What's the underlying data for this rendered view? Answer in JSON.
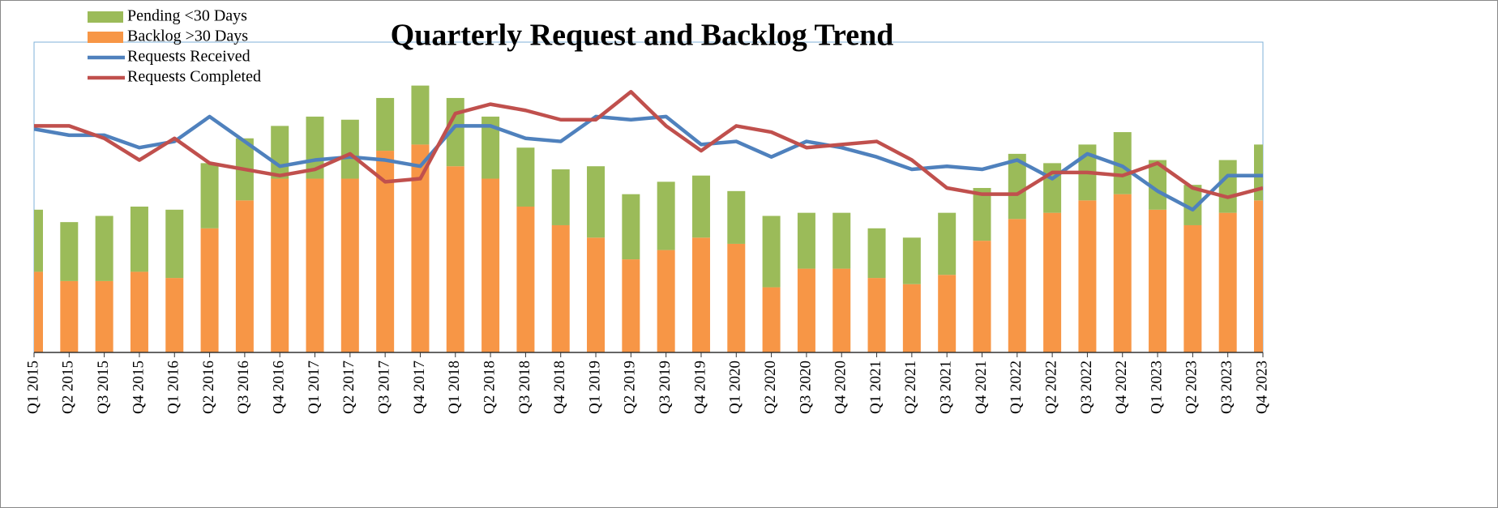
{
  "chart_data": {
    "type": "bar",
    "stacked": true,
    "title": "Quarterly Request and Backlog Trend",
    "legend": "upper left",
    "categories": [
      "Q1 2015",
      "Q2 2015",
      "Q3 2015",
      "Q4 2015",
      "Q1 2016",
      "Q2 2016",
      "Q3 2016",
      "Q4 2016",
      "Q1 2017",
      "Q2 2017",
      "Q3 2017",
      "Q4 2017",
      "Q1 2018",
      "Q2 2018",
      "Q3 2018",
      "Q4 2018",
      "Q1 2019",
      "Q2 2019",
      "Q3 2019",
      "Q4 2019",
      "Q1 2020",
      "Q2 2020",
      "Q3 2020",
      "Q4 2020",
      "Q1 2021",
      "Q2 2021",
      "Q3 2021",
      "Q4 2021",
      "Q1 2022",
      "Q2 2022",
      "Q3 2022",
      "Q4 2022",
      "Q1 2023",
      "Q2 2023",
      "Q3 2023",
      "Q4 2023"
    ],
    "ylim": [
      0,
      100
    ],
    "series": [
      {
        "name": "Pending <30 Days",
        "type": "bar",
        "color": "#9bbb59",
        "values": [
          20,
          19,
          21,
          21,
          22,
          21,
          20,
          17,
          20,
          19,
          17,
          19,
          22,
          20,
          19,
          18,
          23,
          21,
          22,
          20,
          17,
          23,
          18,
          18,
          16,
          15,
          20,
          17,
          21,
          16,
          18,
          20,
          16,
          13,
          17,
          18
        ]
      },
      {
        "name": "Backlog >30 Days",
        "type": "bar",
        "color": "#f79646",
        "values": [
          26,
          23,
          23,
          26,
          24,
          40,
          49,
          56,
          56,
          56,
          65,
          67,
          60,
          56,
          47,
          41,
          37,
          30,
          33,
          37,
          35,
          21,
          27,
          27,
          24,
          22,
          25,
          36,
          43,
          45,
          49,
          51,
          46,
          41,
          45,
          49
        ]
      },
      {
        "name": "Requests Received",
        "type": "line",
        "color": "#4f81bd",
        "values": [
          72,
          70,
          70,
          66,
          68,
          76,
          68,
          60,
          62,
          63,
          62,
          60,
          73,
          73,
          69,
          68,
          76,
          75,
          76,
          67,
          68,
          63,
          68,
          66,
          63,
          59,
          60,
          59,
          62,
          56,
          64,
          60,
          52,
          46,
          57,
          57
        ]
      },
      {
        "name": "Requests Completed",
        "type": "line",
        "color": "#c0504d",
        "values": [
          73,
          73,
          69,
          62,
          69,
          61,
          59,
          57,
          59,
          64,
          55,
          56,
          77,
          80,
          78,
          75,
          75,
          84,
          73,
          65,
          73,
          71,
          66,
          67,
          68,
          62,
          53,
          51,
          51,
          58,
          58,
          57,
          61,
          53,
          50,
          53
        ]
      }
    ]
  }
}
